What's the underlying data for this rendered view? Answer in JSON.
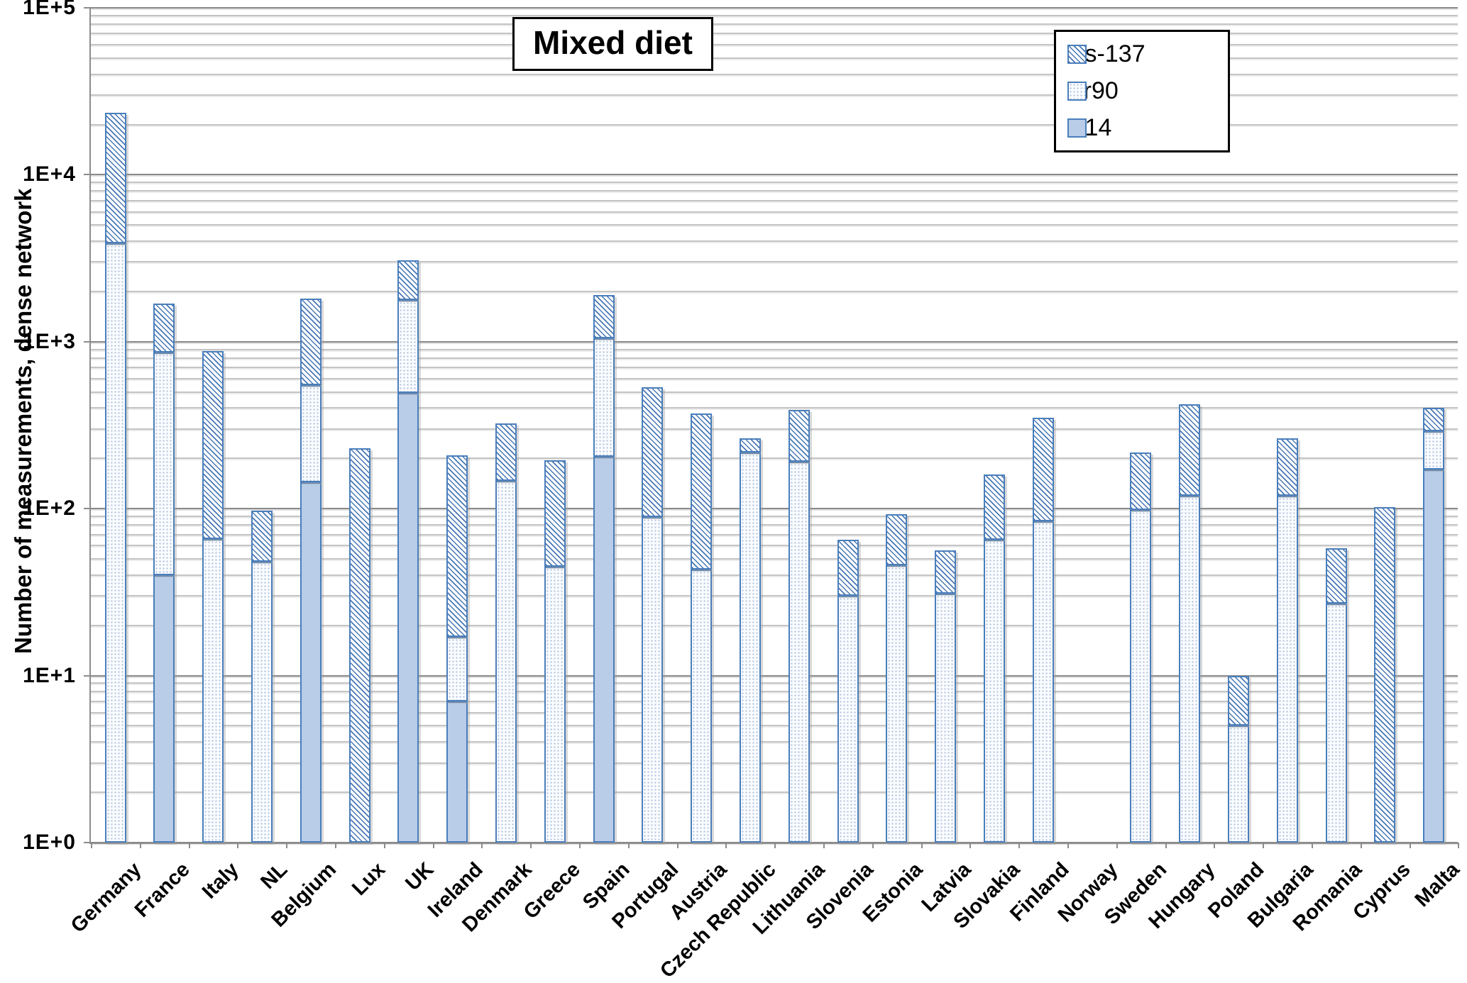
{
  "title": "Mixed diet",
  "y_axis": {
    "title": "Number of measurements, dense network",
    "tick_labels": [
      "1E+5",
      "1E+4",
      "1E+3",
      "1E+2",
      "1E+1",
      "1E+0"
    ],
    "min_exponent": 0,
    "max_exponent": 5,
    "scale": "log10"
  },
  "legend": {
    "position": "top-right",
    "items": [
      {
        "label": "Cs-137",
        "pattern": "diagonal-hatch"
      },
      {
        "label": "Sr90",
        "pattern": "fine-dots"
      },
      {
        "label": "C14",
        "pattern": "solid"
      }
    ]
  },
  "colors": {
    "bar_border": "#4a7ebb",
    "c14_fill": "#b9cde8",
    "hatch_line": "#3e70b0",
    "major_gridline": "#8a8a8a",
    "minor_gridline": "#c4c4c4",
    "axis_line": "#8c8c8c",
    "text": "#000000",
    "background": "#ffffff"
  },
  "chart_data": {
    "type": "bar",
    "stacked": true,
    "orientation": "vertical",
    "y_scale": "log",
    "ylim": [
      1,
      100000
    ],
    "grid": "horizontal-major-and-minor",
    "legend_position": "top-right",
    "title": "Mixed diet",
    "ylabel": "Number of measurements, dense network",
    "xlabel": "",
    "categories": [
      "Germany",
      "France",
      "Italy",
      "NL",
      "Belgium",
      "Lux",
      "UK",
      "Ireland",
      "Denmark",
      "Greece",
      "Spain",
      "Portugal",
      "Austria",
      "Czech Republic",
      "Lithuania",
      "Slovenia",
      "Estonia",
      "Latvia",
      "Slovakia",
      "Finland",
      "Norway",
      "Sweden",
      "Hungary",
      "Poland",
      "Bulgaria",
      "Romania",
      "Cyprus",
      "Malta"
    ],
    "series": [
      {
        "name": "C14",
        "stack_order": "bottom",
        "values": [
          0,
          40,
          0,
          0,
          144,
          0,
          495,
          7,
          0,
          0,
          205,
          0,
          0,
          0,
          0,
          0,
          0,
          0,
          0,
          0,
          0,
          0,
          0,
          0,
          0,
          0,
          0,
          172
        ]
      },
      {
        "name": "Sr90",
        "stack_order": "middle",
        "values": [
          3900,
          825,
          66,
          48,
          406,
          0,
          1285,
          10,
          147,
          45,
          845,
          89,
          43,
          217,
          191,
          30,
          46,
          31,
          65,
          84,
          0,
          98,
          119,
          5,
          119,
          27,
          0,
          118
        ]
      },
      {
        "name": "Cs-137",
        "stack_order": "top",
        "values": [
          19500,
          835,
          810,
          49,
          1270,
          230,
          1280,
          191,
          178,
          150,
          850,
          446,
          327,
          48,
          199,
          35,
          47,
          25,
          95,
          266,
          0,
          120,
          301,
          5,
          146,
          31,
          102,
          110
        ]
      }
    ]
  }
}
